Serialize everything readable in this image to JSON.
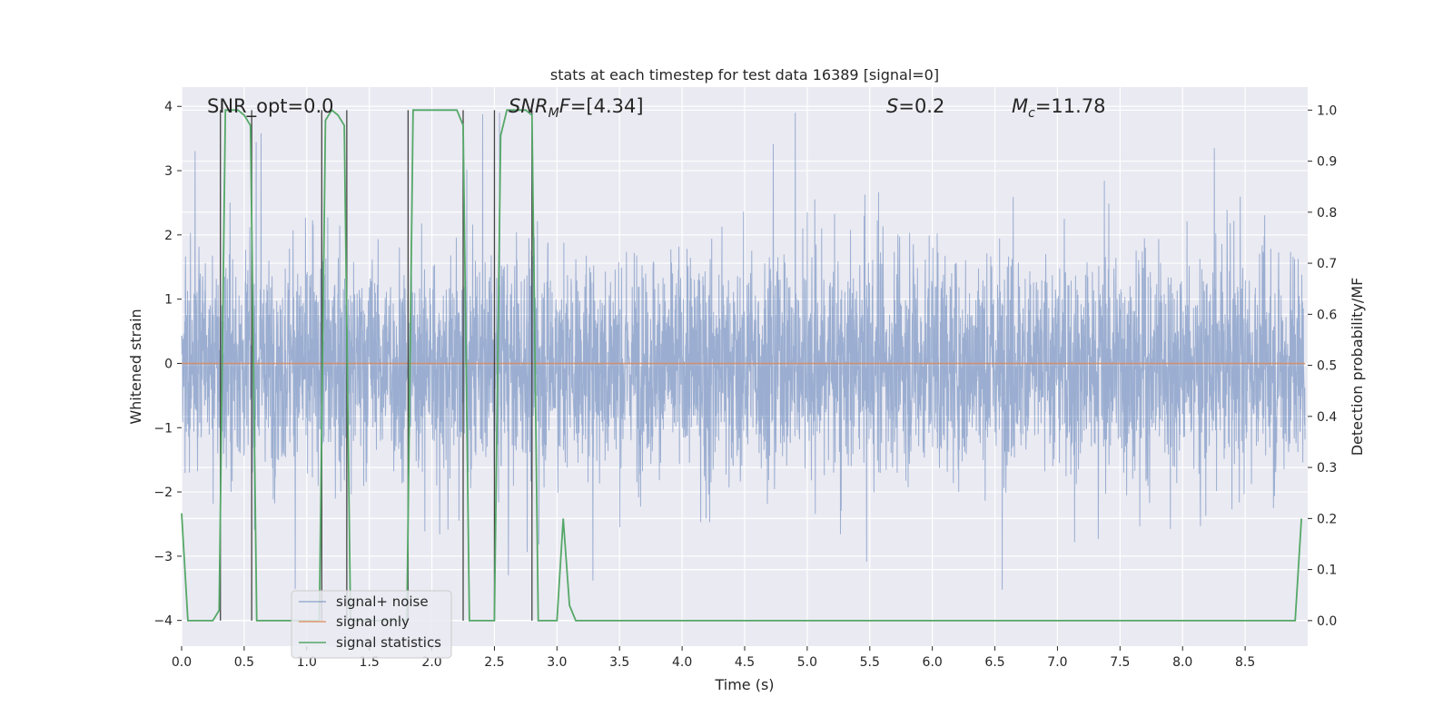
{
  "chart_data": {
    "type": "line",
    "title": "stats at each timestep for test data 16389 [signal=0]",
    "xlabel": "Time (s)",
    "ylabel": "Whitened strain",
    "ylabel_right": "Detection probability/MF",
    "xlim": [
      0.0,
      9.0
    ],
    "ylim": [
      -4.4,
      4.3
    ],
    "ylim_right": [
      -0.05,
      1.045
    ],
    "x_ticks": [
      0.0,
      0.5,
      1.0,
      1.5,
      2.0,
      2.5,
      3.0,
      3.5,
      4.0,
      4.5,
      5.0,
      5.5,
      6.0,
      6.5,
      7.0,
      7.5,
      8.0,
      8.5
    ],
    "x_tick_labels": [
      "0.0",
      "0.5",
      "1.0",
      "1.5",
      "2.0",
      "2.5",
      "3.0",
      "3.5",
      "4.0",
      "4.5",
      "5.0",
      "5.5",
      "6.0",
      "6.5",
      "7.0",
      "7.5",
      "8.0",
      "8.5"
    ],
    "y_ticks": [
      -4,
      -3,
      -2,
      -1,
      0,
      1,
      2,
      3,
      4
    ],
    "y_tick_labels": [
      "−4",
      "−3",
      "−2",
      "−1",
      "0",
      "1",
      "2",
      "3",
      "4"
    ],
    "y_right_ticks": [
      0.0,
      0.1,
      0.2,
      0.3,
      0.4,
      0.5,
      0.6,
      0.7,
      0.8,
      0.9,
      1.0
    ],
    "y_right_tick_labels": [
      "0.0",
      "0.1",
      "0.2",
      "0.3",
      "0.4",
      "0.5",
      "0.6",
      "0.7",
      "0.8",
      "0.9",
      "1.0"
    ],
    "grid": true,
    "legend_position": "lower-left",
    "annotations": [
      {
        "id": "snr-opt",
        "text": "SNR_opt=0.0"
      },
      {
        "id": "snr-mf",
        "text": "SNRMF=[4.34]"
      },
      {
        "id": "s",
        "text": "S=0.2"
      },
      {
        "id": "mc",
        "text": "Mc=11.78"
      }
    ],
    "series": [
      {
        "name": "signal+ noise",
        "color": "#4c72b0",
        "kind": "noise",
        "sample_rate": 512,
        "duration": 8.98,
        "envelope": {
          "core": 1.5,
          "peak_max": 3.9,
          "peak_min": -4.0
        }
      },
      {
        "name": "signal only",
        "color": "#dd8452",
        "values_note_constant": 0,
        "x": [
          0.0,
          8.98
        ],
        "y": [
          0.0,
          0.0
        ]
      },
      {
        "name": "signal statistics",
        "color": "#55a868",
        "axis": "right",
        "x": [
          0.0,
          0.05,
          0.25,
          0.3,
          0.35,
          0.4,
          0.45,
          0.5,
          0.55,
          0.6,
          0.65,
          1.1,
          1.15,
          1.2,
          1.25,
          1.3,
          1.35,
          1.8,
          1.85,
          1.9,
          2.2,
          2.25,
          2.3,
          2.35,
          2.4,
          2.45,
          2.5,
          2.55,
          2.6,
          2.65,
          2.75,
          2.8,
          2.85,
          2.9,
          2.95,
          3.0,
          3.05,
          3.1,
          3.15,
          3.2,
          8.85,
          8.9,
          8.95
        ],
        "y": [
          0.21,
          0.0,
          0.0,
          0.02,
          1.0,
          1.0,
          1.0,
          0.99,
          0.97,
          0.0,
          0.0,
          0.0,
          0.98,
          1.0,
          0.99,
          0.97,
          0.0,
          0.0,
          1.0,
          1.0,
          1.0,
          0.97,
          0.0,
          0.0,
          0.0,
          0.0,
          0.0,
          0.95,
          1.0,
          1.0,
          1.0,
          0.99,
          0.0,
          0.0,
          0.0,
          0.0,
          0.2,
          0.03,
          0.0,
          0.0,
          0.0,
          0.0,
          0.2
        ]
      }
    ],
    "vertical_markers": {
      "color": "#444444",
      "x": [
        0.31,
        0.56,
        1.12,
        1.32,
        1.81,
        2.25,
        2.5,
        2.8
      ]
    }
  }
}
